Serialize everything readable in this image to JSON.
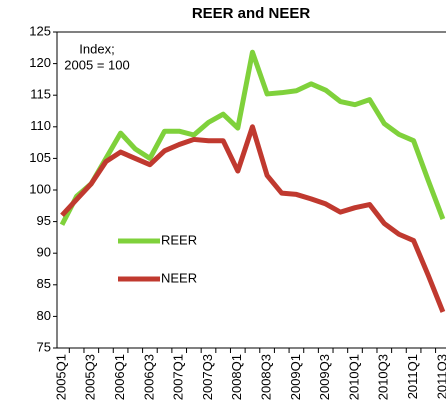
{
  "chart_data": {
    "type": "line",
    "title": "REER and NEER",
    "annotation": [
      "Index;",
      "2005 = 100"
    ],
    "categories": [
      "2005Q1",
      null,
      "2005Q3",
      null,
      "2006Q1",
      null,
      "2006Q3",
      null,
      "2007Q1",
      null,
      "2007Q3",
      null,
      "2008Q1",
      null,
      "2008Q3",
      null,
      "2009Q1",
      null,
      "2009Q3",
      null,
      "2010Q1",
      null,
      "2010Q3",
      null,
      "2011Q1",
      null,
      "2011Q3"
    ],
    "series": [
      {
        "name": "REER",
        "color": "#7fd13b",
        "values": [
          94.5,
          99,
          101,
          105,
          109,
          106.5,
          105,
          109.3,
          109.3,
          108.7,
          110.7,
          112,
          109.8,
          121.8,
          115.2,
          115.4,
          115.7,
          116.8,
          115.8,
          114,
          113.5,
          114.3,
          110.5,
          108.8,
          107.8,
          101.5,
          95.4
        ]
      },
      {
        "name": "NEER",
        "color": "#c0392f",
        "values": [
          96,
          98.5,
          101,
          104.5,
          106,
          105,
          104,
          106.2,
          107.2,
          108,
          107.8,
          107.8,
          103,
          110,
          102.3,
          99.5,
          99.3,
          98.6,
          97.8,
          96.5,
          97.2,
          97.7,
          94.7,
          93,
          92,
          86.5,
          80.7
        ]
      }
    ],
    "ylim": [
      75,
      125
    ],
    "yticks": [
      75,
      80,
      85,
      90,
      95,
      100,
      105,
      110,
      115,
      120,
      125
    ],
    "grid": false,
    "legend": "center-left"
  }
}
